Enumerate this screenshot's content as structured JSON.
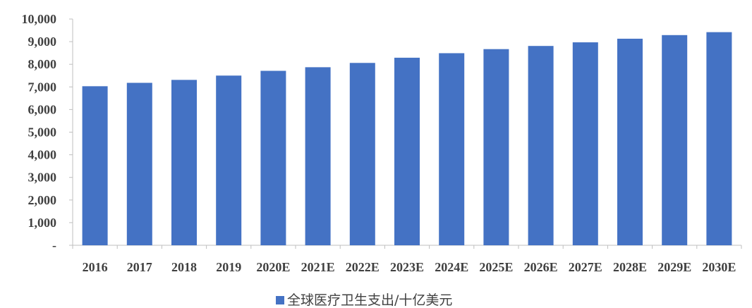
{
  "chart_data": {
    "type": "bar",
    "categories": [
      "2016",
      "2017",
      "2018",
      "2019",
      "2020E",
      "2021E",
      "2022E",
      "2023E",
      "2024E",
      "2025E",
      "2026E",
      "2027E",
      "2028E",
      "2029E",
      "2030E"
    ],
    "series": [
      {
        "name": "全球医疗卫生支出/十亿美元",
        "values": [
          7030,
          7180,
          7310,
          7500,
          7710,
          7870,
          8060,
          8290,
          8490,
          8670,
          8810,
          8970,
          9130,
          9290,
          9420
        ],
        "color": "#4472C4"
      }
    ],
    "yticks": [
      "-",
      "1,000",
      "2,000",
      "3,000",
      "4,000",
      "5,000",
      "6,000",
      "7,000",
      "8,000",
      "9,000",
      "10,000"
    ],
    "ylim": [
      0,
      10000
    ],
    "grid": false,
    "legend_position": "bottom-center"
  }
}
